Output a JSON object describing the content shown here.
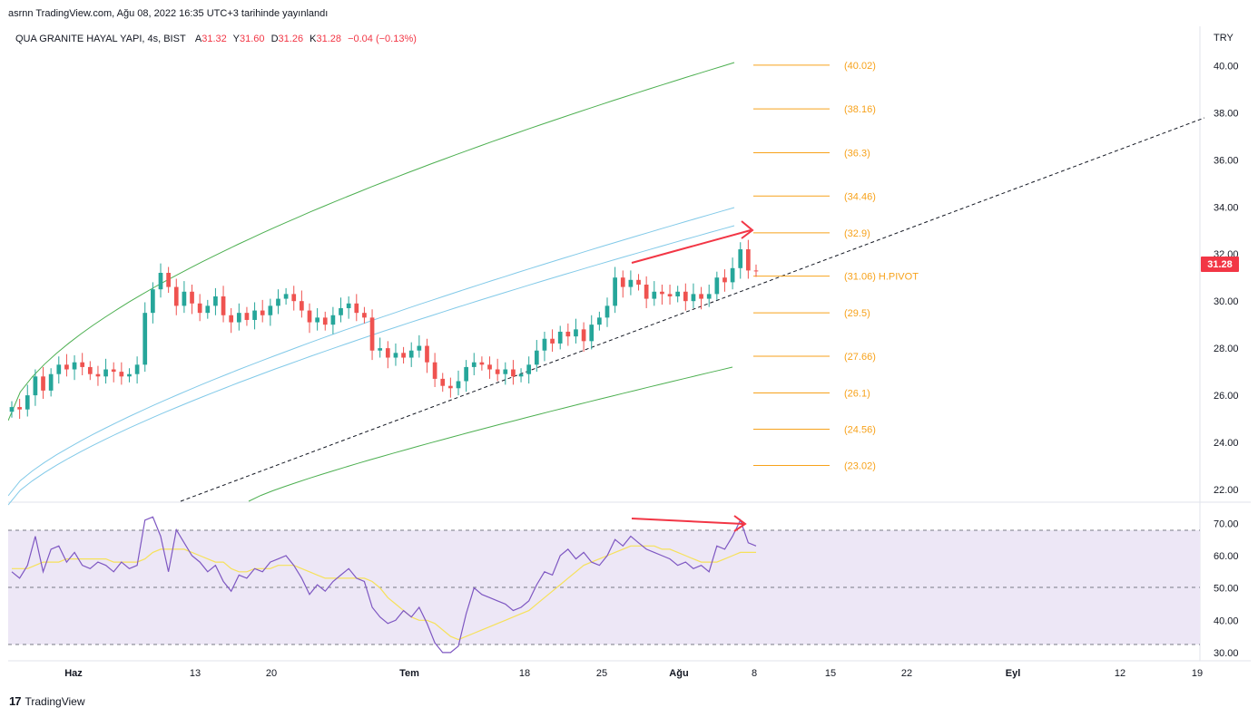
{
  "header": {
    "caption": "asrnn TradingView.com, Ağu 08, 2022 16:35 UTC+3 tarihinde yayınlandı"
  },
  "legend": {
    "symbol": "QUA GRANITE HAYAL YAPI, 4s, BIST",
    "open_label": "A",
    "open": "31.32",
    "high_label": "Y",
    "high": "31.60",
    "low_label": "D",
    "low": "31.26",
    "close_label": "K",
    "close": "31.28",
    "change": "−0.04 (−0.13%)"
  },
  "axis": {
    "currency": "TRY",
    "last_price": "31.28",
    "price_ticks": [
      "40.00",
      "38.00",
      "36.00",
      "34.00",
      "32.00",
      "30.00",
      "28.00",
      "26.00",
      "24.00",
      "22.00"
    ],
    "rsi_ticks": [
      "70.00",
      "60.00",
      "50.00",
      "40.00",
      "30.00"
    ],
    "time_ticks": [
      "Haz",
      "13",
      "20",
      "Tem",
      "18",
      "25",
      "Ağu",
      "8",
      "15",
      "22",
      "Eyl",
      "12",
      "19"
    ]
  },
  "colors": {
    "up": "#26a69a",
    "down": "#ef5350",
    "pivot": "#f7a21b",
    "green_band": "#4caf50",
    "blue_band": "#81c9e8",
    "rsi_line": "#7e57c2",
    "rsi_ma": "#f6e15a",
    "rsi_bg": "#ede7f6",
    "arrow": "#f23645"
  },
  "chart_data": {
    "type": "candlestick",
    "price_range": [
      21.5,
      40.9
    ],
    "rsi_range": [
      28,
      76
    ],
    "x_labels": [
      "Haz",
      "13",
      "20",
      "Tem",
      "18",
      "25",
      "Ağu",
      "8",
      "15",
      "22",
      "Eyl",
      "12",
      "19"
    ],
    "pivot_levels": [
      {
        "value": 40.02,
        "label": "(40.02)"
      },
      {
        "value": 38.16,
        "label": "(38.16)"
      },
      {
        "value": 36.3,
        "label": "(36.3)"
      },
      {
        "value": 34.46,
        "label": "(34.46)"
      },
      {
        "value": 32.9,
        "label": "(32.9)"
      },
      {
        "value": 31.06,
        "label": "(31.06)",
        "tag": "H.PIVOT"
      },
      {
        "value": 29.5,
        "label": "(29.5)"
      },
      {
        "value": 27.66,
        "label": "(27.66)"
      },
      {
        "value": 26.1,
        "label": "(26.1)"
      },
      {
        "value": 24.56,
        "label": "(24.56)"
      },
      {
        "value": 23.02,
        "label": "(23.02)"
      }
    ],
    "close_series": [
      25.5,
      25.4,
      26.0,
      26.8,
      26.2,
      26.9,
      27.3,
      27.1,
      27.4,
      27.2,
      26.9,
      26.8,
      27.1,
      27.0,
      26.8,
      26.9,
      27.3,
      29.5,
      30.5,
      31.2,
      30.6,
      29.8,
      30.4,
      29.9,
      29.5,
      29.8,
      30.2,
      29.4,
      29.1,
      29.5,
      29.2,
      29.6,
      29.4,
      29.8,
      30.1,
      30.3,
      30.0,
      29.6,
      29.1,
      29.3,
      29.0,
      29.4,
      29.7,
      29.9,
      29.5,
      29.3,
      27.9,
      28.0,
      27.6,
      27.8,
      27.6,
      27.9,
      28.1,
      27.4,
      26.7,
      26.4,
      26.3,
      26.6,
      27.2,
      27.4,
      27.3,
      27.1,
      26.9,
      27.1,
      26.8,
      26.9,
      27.3,
      27.9,
      28.4,
      28.2,
      28.7,
      28.5,
      28.8,
      28.3,
      29.0,
      29.3,
      29.8,
      31.0,
      30.6,
      30.9,
      30.7,
      30.1,
      30.4,
      30.3,
      30.2,
      30.4,
      30.0,
      30.3,
      30.1,
      30.3,
      31.0,
      30.8,
      31.4,
      32.2,
      31.3,
      31.28
    ],
    "rsi_series": [
      55,
      53,
      57,
      66,
      55,
      62,
      63,
      58,
      61,
      57,
      56,
      58,
      57,
      55,
      58,
      56,
      57,
      71,
      72,
      66,
      55,
      68,
      64,
      60,
      58,
      55,
      57,
      52,
      49,
      54,
      53,
      56,
      55,
      58,
      59,
      60,
      57,
      53,
      48,
      51,
      49,
      52,
      54,
      56,
      53,
      52,
      44,
      41,
      39,
      40,
      43,
      41,
      44,
      39,
      33,
      30,
      30,
      32,
      42,
      50,
      48,
      47,
      46,
      45,
      43,
      44,
      46,
      51,
      55,
      54,
      60,
      62,
      59,
      61,
      58,
      57,
      60,
      65,
      63,
      66,
      64,
      62,
      61,
      60,
      59,
      57,
      58,
      56,
      57,
      55,
      63,
      62,
      66,
      71,
      64,
      63
    ],
    "rsi_ma_series": [
      56,
      56,
      56,
      57,
      58,
      58,
      58,
      59,
      59,
      59,
      59,
      59,
      59,
      58,
      58,
      58,
      58,
      59,
      61,
      62,
      62,
      62,
      62,
      61,
      60,
      59,
      58,
      58,
      56,
      55,
      55,
      56,
      56,
      56,
      57,
      57,
      57,
      56,
      55,
      54,
      53,
      53,
      53,
      53,
      53,
      53,
      52,
      50,
      47,
      45,
      43,
      41,
      40,
      40,
      39,
      37,
      35,
      34,
      35,
      36,
      37,
      38,
      39,
      40,
      41,
      42,
      43,
      45,
      47,
      49,
      51,
      53,
      55,
      57,
      58,
      59,
      60,
      61,
      62,
      63,
      63,
      63,
      63,
      62,
      62,
      61,
      60,
      59,
      58,
      58,
      58,
      59,
      60,
      61,
      61,
      61
    ]
  }
}
